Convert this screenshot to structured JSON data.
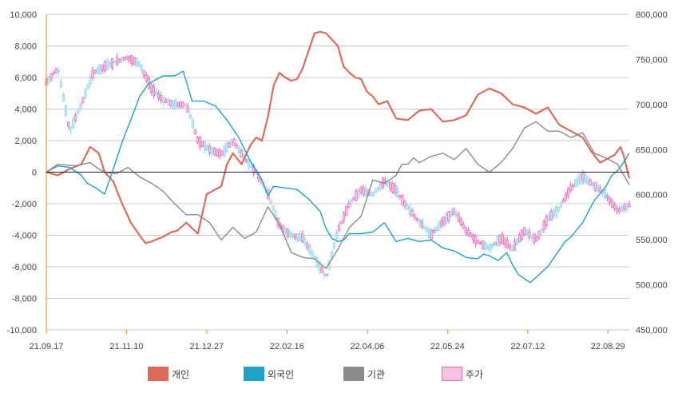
{
  "chart_data": {
    "type": "line",
    "title": "",
    "xlabel": "",
    "ylabel": "",
    "left_axis": {
      "ylim": [
        -10000,
        10000
      ],
      "ticks": [
        "10,000",
        "8,000",
        "6,000",
        "4,000",
        "2,000",
        "0",
        "-2,000",
        "-4,000",
        "-6,000",
        "-8,000",
        "-10,000"
      ]
    },
    "right_axis": {
      "ylim": [
        450000,
        800000
      ],
      "ticks": [
        "800,000",
        "750,000",
        "700,000",
        "650,000",
        "600,000",
        "550,000",
        "500,000",
        "450,000"
      ]
    },
    "x_tick_labels": [
      "21.09.17",
      "21.11.10",
      "21.12.27",
      "22.02.16",
      "22.04.06",
      "22.05.24",
      "22.07.12",
      "22.08.29"
    ],
    "x_tick_positions": [
      0,
      0.1376,
      0.2752,
      0.4128,
      0.5505,
      0.6881,
      0.8257,
      0.9633
    ],
    "legend_placement": "bottom",
    "series": [
      {
        "name": "개인",
        "color": "#dd6b5b",
        "axis": "left",
        "x": [
          0,
          0.02,
          0.04,
          0.06,
          0.075,
          0.09,
          0.1,
          0.115,
          0.13,
          0.145,
          0.16,
          0.17,
          0.18,
          0.2,
          0.215,
          0.225,
          0.24,
          0.26,
          0.275,
          0.29,
          0.3,
          0.31,
          0.32,
          0.335,
          0.35,
          0.36,
          0.37,
          0.38,
          0.39,
          0.4,
          0.41,
          0.42,
          0.43,
          0.44,
          0.45,
          0.46,
          0.47,
          0.48,
          0.49,
          0.5,
          0.51,
          0.52,
          0.53,
          0.54,
          0.55,
          0.56,
          0.57,
          0.585,
          0.6,
          0.62,
          0.64,
          0.66,
          0.68,
          0.7,
          0.72,
          0.74,
          0.76,
          0.78,
          0.8,
          0.82,
          0.84,
          0.86,
          0.88,
          0.9,
          0.92,
          0.935,
          0.95,
          0.965,
          0.975,
          0.985,
          0.99,
          1.0
        ],
        "values": [
          0,
          -200,
          200,
          500,
          1600,
          1200,
          0,
          -600,
          -2000,
          -3200,
          -4000,
          -4500,
          -4400,
          -4100,
          -3800,
          -3700,
          -3200,
          -3900,
          -1400,
          -1100,
          -900,
          500,
          1200,
          500,
          1700,
          2200,
          2000,
          3500,
          5500,
          6300,
          6000,
          5800,
          5900,
          6600,
          7700,
          8800,
          8900,
          8800,
          8400,
          8000,
          6700,
          6300,
          6000,
          5900,
          5100,
          4800,
          4300,
          4500,
          3400,
          3300,
          3900,
          4000,
          3200,
          3300,
          3600,
          4900,
          5300,
          5000,
          4300,
          4100,
          3700,
          4100,
          3000,
          2600,
          2200,
          1300,
          600,
          900,
          1100,
          1600,
          1100,
          -400
        ]
      },
      {
        "name": "외국인",
        "color": "#1ea2c8",
        "axis": "left",
        "x": [
          0,
          0.02,
          0.04,
          0.06,
          0.07,
          0.085,
          0.1,
          0.115,
          0.13,
          0.15,
          0.16,
          0.175,
          0.19,
          0.2,
          0.22,
          0.235,
          0.25,
          0.27,
          0.29,
          0.31,
          0.33,
          0.35,
          0.37,
          0.38,
          0.39,
          0.41,
          0.43,
          0.45,
          0.47,
          0.48,
          0.49,
          0.5,
          0.51,
          0.52,
          0.54,
          0.56,
          0.58,
          0.6,
          0.62,
          0.64,
          0.66,
          0.68,
          0.7,
          0.72,
          0.74,
          0.75,
          0.76,
          0.775,
          0.79,
          0.8,
          0.81,
          0.83,
          0.845,
          0.86,
          0.875,
          0.89,
          0.9,
          0.92,
          0.94,
          0.96,
          0.97,
          0.98,
          0.99,
          1.0
        ],
        "values": [
          0,
          400,
          300,
          -200,
          -700,
          -1000,
          -1400,
          200,
          1900,
          3800,
          4800,
          5600,
          5900,
          6100,
          6100,
          6400,
          4500,
          4500,
          4200,
          3300,
          2200,
          700,
          -500,
          -1500,
          -900,
          -1000,
          -1100,
          -1700,
          -2500,
          -3600,
          -4200,
          -4400,
          -4300,
          -3900,
          -3900,
          -3800,
          -3200,
          -4400,
          -4200,
          -4400,
          -4300,
          -4800,
          -5000,
          -5400,
          -5500,
          -5200,
          -5300,
          -5600,
          -5100,
          -5900,
          -6500,
          -7000,
          -6500,
          -6000,
          -5200,
          -4400,
          -4100,
          -3200,
          -1800,
          -900,
          -200,
          100,
          600,
          1200
        ]
      },
      {
        "name": "기관",
        "color": "#8c8c8c",
        "axis": "left",
        "x": [
          0,
          0.02,
          0.05,
          0.075,
          0.09,
          0.1,
          0.12,
          0.14,
          0.16,
          0.18,
          0.2,
          0.22,
          0.24,
          0.26,
          0.28,
          0.3,
          0.32,
          0.34,
          0.36,
          0.38,
          0.4,
          0.42,
          0.44,
          0.46,
          0.48,
          0.5,
          0.52,
          0.54,
          0.56,
          0.58,
          0.6,
          0.61,
          0.62,
          0.63,
          0.64,
          0.66,
          0.68,
          0.7,
          0.72,
          0.74,
          0.76,
          0.78,
          0.8,
          0.82,
          0.84,
          0.86,
          0.88,
          0.9,
          0.92,
          0.94,
          0.96,
          0.98,
          1.0
        ],
        "values": [
          0,
          500,
          400,
          600,
          200,
          0,
          -100,
          300,
          -300,
          -700,
          -1200,
          -2000,
          -2700,
          -2700,
          -3200,
          -4300,
          -3500,
          -4200,
          -3800,
          -2200,
          -3300,
          -5100,
          -5400,
          -5500,
          -6100,
          -4900,
          -3500,
          -2800,
          -500,
          -700,
          -200,
          500,
          500,
          900,
          600,
          1000,
          1200,
          800,
          1500,
          500,
          0,
          600,
          1500,
          2800,
          3200,
          2600,
          2600,
          2200,
          2500,
          1200,
          900,
          500,
          -800
        ]
      }
    ],
    "price_series": {
      "name": "주가",
      "color": "#f3a6d4",
      "axis": "right",
      "x": [
        0,
        0.02,
        0.04,
        0.06,
        0.08,
        0.1,
        0.12,
        0.14,
        0.16,
        0.18,
        0.2,
        0.22,
        0.24,
        0.26,
        0.28,
        0.3,
        0.32,
        0.34,
        0.36,
        0.38,
        0.4,
        0.42,
        0.44,
        0.46,
        0.48,
        0.5,
        0.52,
        0.54,
        0.56,
        0.58,
        0.6,
        0.62,
        0.64,
        0.66,
        0.68,
        0.7,
        0.72,
        0.74,
        0.76,
        0.78,
        0.8,
        0.82,
        0.84,
        0.86,
        0.88,
        0.9,
        0.92,
        0.94,
        0.96,
        0.98,
        1.0
      ],
      "values": [
        725000,
        740000,
        670000,
        700000,
        735000,
        742000,
        748000,
        752000,
        745000,
        718000,
        705000,
        700000,
        700000,
        660000,
        650000,
        645000,
        660000,
        640000,
        625000,
        602000,
        565000,
        555000,
        552000,
        530000,
        508000,
        560000,
        590000,
        605000,
        600000,
        615000,
        605000,
        585000,
        570000,
        555000,
        570000,
        582000,
        560000,
        548000,
        540000,
        552000,
        540000,
        560000,
        550000,
        573000,
        585000,
        608000,
        620000,
        610000,
        600000,
        582000,
        588000
      ]
    }
  },
  "legend": [
    {
      "label": "개인",
      "color": "#dd6b5b",
      "border": "#dd6b5b"
    },
    {
      "label": "외국인",
      "color": "#1ea2c8",
      "border": "#1ea2c8"
    },
    {
      "label": "기관",
      "color": "#8c8c8c",
      "border": "#8c8c8c"
    },
    {
      "label": "주가",
      "color": "#f8c2e3",
      "border": "#e06ab4"
    }
  ]
}
